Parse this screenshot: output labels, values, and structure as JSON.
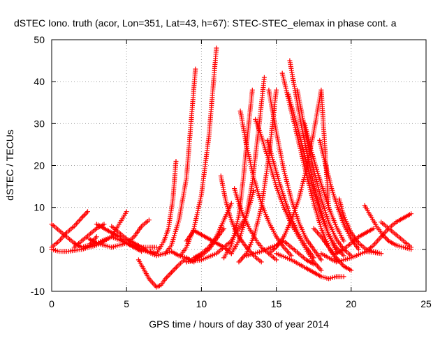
{
  "chart_data": {
    "type": "scatter",
    "title": "dSTEC Iono. truth (acor, Lon=351, Lat=43, h=67): STEC-STEC_elemax in phase cont. a",
    "xlabel": "GPS time / hours of day 330 of year 2014",
    "ylabel": "dSTEC  / TECUs",
    "xlim": [
      0,
      25
    ],
    "ylim": [
      -10,
      50
    ],
    "xticks": [
      "0",
      "5",
      "10",
      "15",
      "20",
      "25"
    ],
    "yticks": [
      "-10",
      "0",
      "10",
      "20",
      "30",
      "40",
      "50"
    ],
    "grid": true,
    "marker": "+",
    "color": "#ff0000",
    "series": [
      {
        "x": [
          0.0,
          0.5,
          1.0,
          1.5,
          2.0,
          2.4
        ],
        "y": [
          0.5,
          2.0,
          4.0,
          5.5,
          7.5,
          9.0
        ]
      },
      {
        "x": [
          0.0,
          0.5,
          1.0,
          1.5,
          2.0,
          2.5,
          3.0
        ],
        "y": [
          6.0,
          4.5,
          3.0,
          1.5,
          0.5,
          1.0,
          3.0
        ]
      },
      {
        "x": [
          1.5,
          2.0,
          2.5,
          3.0,
          3.5
        ],
        "y": [
          0.5,
          2.0,
          3.5,
          5.0,
          6.0
        ]
      },
      {
        "x": [
          0.0,
          0.5,
          1.0,
          2.0,
          3.0,
          4.0,
          4.5,
          5.0
        ],
        "y": [
          0.0,
          -0.5,
          -0.5,
          0.0,
          1.0,
          3.0,
          6.0,
          9.0
        ]
      },
      {
        "x": [
          2.0,
          3.0,
          4.0,
          5.0,
          6.0,
          7.0
        ],
        "y": [
          0.0,
          1.5,
          3.0,
          1.5,
          0.5,
          0.5
        ]
      },
      {
        "x": [
          4.0,
          4.5,
          5.0,
          5.5,
          6.0,
          6.4
        ],
        "y": [
          5.5,
          4.0,
          2.5,
          1.5,
          0.5,
          -0.5
        ]
      },
      {
        "x": [
          4.0,
          5.0,
          5.5,
          6.0,
          6.5
        ],
        "y": [
          0.5,
          1.5,
          3.0,
          5.5,
          7.0
        ]
      },
      {
        "x": [
          5.0,
          6.0,
          7.0,
          7.5,
          8.0,
          8.5,
          9.0,
          9.5
        ],
        "y": [
          1.5,
          0.0,
          -1.5,
          -1.0,
          -0.5,
          -1.5,
          -2.0,
          -3.0
        ]
      },
      {
        "x": [
          5.8,
          6.5,
          7.0,
          7.3,
          7.6,
          8.0,
          8.4,
          9.0
        ],
        "y": [
          -2.5,
          -7.0,
          -9.0,
          -8.5,
          -7.0,
          -5.5,
          -4.0,
          -2.0
        ]
      },
      {
        "x": [
          6.6,
          7.0,
          7.5,
          7.8,
          8.1,
          8.3
        ],
        "y": [
          -0.5,
          -1.0,
          2.0,
          5.0,
          12.0,
          21.0
        ]
      },
      {
        "x": [
          7.6,
          8.0,
          8.5,
          9.0,
          9.3,
          9.6
        ],
        "y": [
          -1.0,
          1.0,
          7.0,
          17.0,
          30.0,
          43.0
        ]
      },
      {
        "x": [
          8.6,
          9.0,
          9.5,
          10.0,
          10.5,
          11.0
        ],
        "y": [
          -1.5,
          0.5,
          5.0,
          13.0,
          27.0,
          48.0
        ]
      },
      {
        "x": [
          9.0,
          9.5,
          10.0,
          10.5,
          11.0,
          11.5
        ],
        "y": [
          -3.0,
          -2.5,
          -1.5,
          0.0,
          2.5,
          5.0
        ]
      },
      {
        "x": [
          9.5,
          10.0,
          10.5,
          11.0,
          11.5,
          12.0
        ],
        "y": [
          -2.0,
          -1.0,
          0.5,
          3.0,
          7.0,
          11.0
        ]
      },
      {
        "x": [
          9.0,
          10.0,
          11.0,
          12.0,
          13.0,
          13.5
        ],
        "y": [
          -3.0,
          -2.5,
          -1.0,
          2.0,
          8.0,
          14.0
        ]
      },
      {
        "x": [
          9.0,
          9.5,
          10.0,
          10.5,
          11.0,
          11.5,
          12.0
        ],
        "y": [
          2.0,
          4.5,
          3.5,
          2.5,
          1.5,
          0.5,
          -1.0
        ]
      },
      {
        "x": [
          11.3,
          11.6,
          11.9,
          12.2,
          12.5,
          13.0,
          13.5,
          14.0
        ],
        "y": [
          17.5,
          12.0,
          8.0,
          5.0,
          3.0,
          0.5,
          -1.5,
          -3.0
        ]
      },
      {
        "x": [
          12.2,
          12.5,
          12.8,
          13.2,
          13.6,
          14.0,
          14.5,
          15.0
        ],
        "y": [
          14.5,
          11.0,
          8.0,
          5.0,
          2.5,
          0.5,
          -1.0,
          -2.5
        ]
      },
      {
        "x": [
          12.6,
          13.0,
          13.5,
          14.0,
          14.5,
          15.0,
          15.5,
          16.0
        ],
        "y": [
          33.0,
          25.0,
          17.0,
          11.0,
          6.5,
          3.0,
          0.5,
          -1.5
        ]
      },
      {
        "x": [
          12.0,
          12.5,
          13.0,
          13.4,
          13.8,
          14.2
        ],
        "y": [
          -1.0,
          2.0,
          8.0,
          16.0,
          28.0,
          41.0
        ]
      },
      {
        "x": [
          11.5,
          12.0,
          12.5,
          12.8,
          13.1,
          13.4
        ],
        "y": [
          -2.0,
          1.0,
          8.0,
          17.0,
          28.0,
          38.0
        ]
      },
      {
        "x": [
          13.6,
          14.0,
          14.5,
          15.0,
          15.5,
          16.0,
          16.5,
          17.0,
          17.5,
          18.0
        ],
        "y": [
          31.0,
          27.0,
          21.0,
          15.0,
          10.0,
          6.0,
          3.0,
          0.0,
          -3.0,
          -5.0
        ]
      },
      {
        "x": [
          14.4,
          14.8,
          15.2,
          15.6,
          16.0,
          16.5,
          17.0,
          17.5
        ],
        "y": [
          26.0,
          21.0,
          16.0,
          11.5,
          7.5,
          3.5,
          0.5,
          -2.0
        ]
      },
      {
        "x": [
          12.5,
          13.0,
          13.5,
          14.0,
          14.5,
          15.0
        ],
        "y": [
          -3.0,
          -1.0,
          3.0,
          10.0,
          22.0,
          38.0
        ]
      },
      {
        "x": [
          14.5,
          15.0,
          15.5,
          16.0,
          16.5,
          17.0,
          17.5,
          18.0
        ],
        "y": [
          38.0,
          28.0,
          19.0,
          12.0,
          6.5,
          2.5,
          0.0,
          -2.5
        ]
      },
      {
        "x": [
          13.0,
          14.0,
          15.0,
          15.5,
          16.0,
          16.5,
          17.0,
          17.5
        ],
        "y": [
          -1.5,
          -0.5,
          1.0,
          2.0,
          0.5,
          -1.0,
          -2.5,
          -3.5
        ]
      },
      {
        "x": [
          14.5,
          15.0,
          15.5,
          16.0,
          16.5,
          17.0,
          17.5,
          18.0,
          18.5
        ],
        "y": [
          -1.0,
          0.5,
          3.0,
          7.0,
          12.0,
          19.0,
          28.0,
          38.0,
          10.0
        ]
      },
      {
        "x": [
          15.4,
          15.8,
          16.2,
          16.6,
          17.0,
          17.5,
          18.0,
          18.5,
          19.0
        ],
        "y": [
          42.0,
          36.0,
          30.0,
          24.0,
          18.0,
          11.0,
          5.0,
          0.5,
          -2.5
        ]
      },
      {
        "x": [
          15.9,
          16.3,
          16.7,
          17.1,
          17.5,
          18.0,
          18.5,
          19.0
        ],
        "y": [
          45.0,
          37.0,
          29.0,
          22.0,
          15.5,
          9.0,
          3.5,
          -0.5
        ]
      },
      {
        "x": [
          15.8,
          16.5,
          17.0,
          17.5,
          18.0,
          18.5,
          19.0,
          19.5
        ],
        "y": [
          37.0,
          28.0,
          21.0,
          14.0,
          8.0,
          3.5,
          0.5,
          -1.5
        ]
      },
      {
        "x": [
          16.4,
          17.0,
          17.5,
          18.0,
          18.5,
          19.0,
          19.5,
          20.0
        ],
        "y": [
          38.0,
          27.0,
          19.0,
          12.0,
          6.5,
          2.5,
          0.0,
          -1.5
        ]
      },
      {
        "x": [
          16.9,
          17.3,
          17.7,
          18.1,
          18.5,
          19.0,
          19.5
        ],
        "y": [
          30.0,
          24.0,
          19.0,
          14.5,
          10.0,
          5.5,
          2.0
        ]
      },
      {
        "x": [
          17.5,
          18.0,
          18.5,
          19.0,
          19.5,
          20.0
        ],
        "y": [
          5.0,
          3.0,
          0.5,
          -2.0,
          -4.0,
          -5.0
        ]
      },
      {
        "x": [
          17.9,
          18.3,
          18.7,
          19.1,
          19.5,
          20.0,
          20.5
        ],
        "y": [
          26.0,
          20.0,
          14.5,
          10.0,
          6.0,
          2.5,
          0.0
        ]
      },
      {
        "x": [
          15.0,
          16.0,
          17.0,
          17.5,
          18.0,
          18.5,
          19.0,
          19.5
        ],
        "y": [
          -1.0,
          -2.5,
          -4.5,
          -5.5,
          -6.5,
          -7.0,
          -6.5,
          -6.5
        ]
      },
      {
        "x": [
          19.2,
          19.5,
          20.0,
          20.5,
          21.0,
          21.5,
          22.0
        ],
        "y": [
          12.0,
          8.0,
          4.0,
          1.5,
          0.0,
          -0.5,
          -1.0
        ]
      },
      {
        "x": [
          18.0,
          19.0,
          20.0,
          21.0,
          22.0
        ],
        "y": [
          -1.0,
          -3.0,
          -2.0,
          -0.5,
          -1.0
        ]
      },
      {
        "x": [
          19.0,
          19.5,
          20.0,
          20.5,
          21.0,
          21.5
        ],
        "y": [
          -1.0,
          0.0,
          1.5,
          3.0,
          4.0,
          5.0
        ]
      },
      {
        "x": [
          20.9,
          21.3,
          21.7,
          22.1,
          22.5,
          23.0,
          23.5,
          24.0
        ],
        "y": [
          10.5,
          8.0,
          5.5,
          3.5,
          2.0,
          1.0,
          0.5,
          0.0
        ]
      },
      {
        "x": [
          21.0,
          21.5,
          22.0,
          22.5,
          23.0,
          23.5,
          24.0
        ],
        "y": [
          -0.5,
          1.0,
          3.0,
          5.0,
          6.5,
          7.5,
          8.5
        ]
      },
      {
        "x": [
          22.0,
          22.5,
          23.0,
          23.5,
          24.0
        ],
        "y": [
          6.5,
          5.0,
          3.5,
          2.0,
          0.5
        ]
      },
      {
        "x": [
          3.0,
          3.5,
          4.0,
          4.5,
          5.0,
          5.5,
          6.0
        ],
        "y": [
          6.0,
          5.0,
          4.0,
          3.0,
          1.5,
          0.5,
          -0.5
        ]
      },
      {
        "x": [
          2.5,
          3.0,
          3.5,
          4.0
        ],
        "y": [
          2.5,
          1.5,
          1.0,
          0.5
        ]
      }
    ]
  }
}
